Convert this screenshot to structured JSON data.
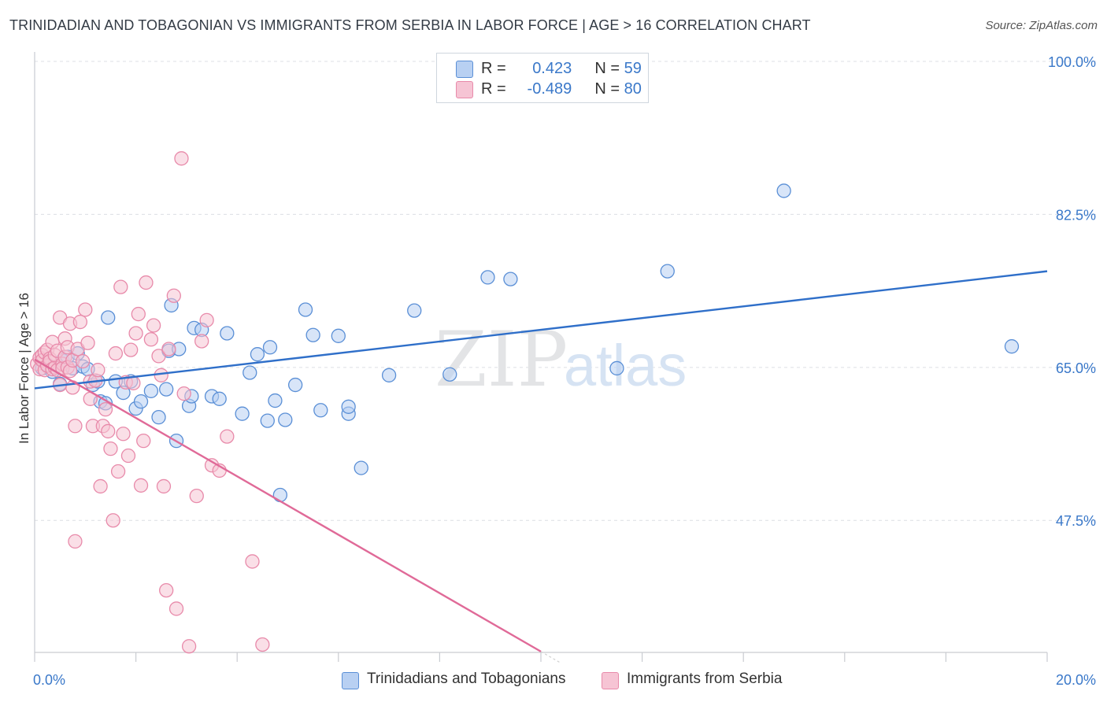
{
  "header": {
    "title": "TRINIDADIAN AND TOBAGONIAN VS IMMIGRANTS FROM SERBIA IN LABOR FORCE | AGE > 16 CORRELATION CHART",
    "source": "Source: ZipAtlas.com"
  },
  "legend": {
    "rows": [
      {
        "r_label": "R =",
        "r_value": "0.423",
        "n_label": "N =",
        "n_value": "59"
      },
      {
        "r_label": "R =",
        "r_value": "-0.489",
        "n_label": "N =",
        "n_value": "80"
      }
    ]
  },
  "watermark": {
    "zip": "ZIP",
    "atlas": "atlas"
  },
  "colors": {
    "blue_fill": "#b8d0f2",
    "blue_stroke": "#5a8fd6",
    "blue_line": "#2f6fc9",
    "pink_fill": "#f6c4d4",
    "pink_stroke": "#e88aaa",
    "pink_line": "#e06a98",
    "tick_label": "#3a78c9",
    "grid": "#dcdfe4"
  },
  "chart_data": {
    "type": "scatter",
    "title": "TRINIDADIAN AND TOBAGONIAN VS IMMIGRANTS FROM SERBIA IN LABOR FORCE | AGE > 16 CORRELATION CHART",
    "xlabel": "",
    "ylabel": "In Labor Force | Age > 16",
    "xlim": [
      0,
      20
    ],
    "ylim": [
      32.4,
      100
    ],
    "x_tick_labels": [
      "0.0%",
      "20.0%"
    ],
    "y_ticks": [
      47.5,
      65.0,
      82.5,
      100.0
    ],
    "y_tick_labels": [
      "47.5%",
      "65.0%",
      "82.5%",
      "100.0%"
    ],
    "grid": true,
    "legend_position": "top-center",
    "series": [
      {
        "name": "Trinidadians and Tobagonians",
        "color": "#5a8fd6",
        "trend": {
          "x": [
            0,
            20
          ],
          "y": [
            62.6,
            76.0
          ]
        },
        "points": [
          [
            0.15,
            64.9
          ],
          [
            0.25,
            65.3
          ],
          [
            0.35,
            64.5
          ],
          [
            0.5,
            63.1
          ],
          [
            0.55,
            65.8
          ],
          [
            0.65,
            66.2
          ],
          [
            0.75,
            64.9
          ],
          [
            0.85,
            66.6
          ],
          [
            0.95,
            65.1
          ],
          [
            1.05,
            64.8
          ],
          [
            1.15,
            63.0
          ],
          [
            1.25,
            63.4
          ],
          [
            1.3,
            61.1
          ],
          [
            1.4,
            60.9
          ],
          [
            1.45,
            70.7
          ],
          [
            1.6,
            63.4
          ],
          [
            1.75,
            62.1
          ],
          [
            1.9,
            63.4
          ],
          [
            2.0,
            60.3
          ],
          [
            2.1,
            61.1
          ],
          [
            2.3,
            62.3
          ],
          [
            2.45,
            59.3
          ],
          [
            2.6,
            62.5
          ],
          [
            2.65,
            66.9
          ],
          [
            2.7,
            72.1
          ],
          [
            2.8,
            56.6
          ],
          [
            2.85,
            67.1
          ],
          [
            3.05,
            60.6
          ],
          [
            3.1,
            61.7
          ],
          [
            3.15,
            69.5
          ],
          [
            3.3,
            69.3
          ],
          [
            3.5,
            61.7
          ],
          [
            3.65,
            61.4
          ],
          [
            3.8,
            68.9
          ],
          [
            4.1,
            59.7
          ],
          [
            4.25,
            64.4
          ],
          [
            4.4,
            66.5
          ],
          [
            4.6,
            58.9
          ],
          [
            4.65,
            67.3
          ],
          [
            4.75,
            61.2
          ],
          [
            4.85,
            50.4
          ],
          [
            4.95,
            59.0
          ],
          [
            5.15,
            63.0
          ],
          [
            5.35,
            71.6
          ],
          [
            5.5,
            68.7
          ],
          [
            5.65,
            60.1
          ],
          [
            6.0,
            68.6
          ],
          [
            6.2,
            59.7
          ],
          [
            6.2,
            60.5
          ],
          [
            6.45,
            53.5
          ],
          [
            7.0,
            64.1
          ],
          [
            7.5,
            71.5
          ],
          [
            8.2,
            64.2
          ],
          [
            8.95,
            75.3
          ],
          [
            9.4,
            75.1
          ],
          [
            11.5,
            64.9
          ],
          [
            12.5,
            76.0
          ],
          [
            14.8,
            85.2
          ],
          [
            19.3,
            67.4
          ]
        ]
      },
      {
        "name": "Immigrants from Serbia",
        "color": "#e88aaa",
        "trend": {
          "x": [
            0,
            10.0
          ],
          "y": [
            65.9,
            32.5
          ]
        },
        "points": [
          [
            0.05,
            65.4
          ],
          [
            0.1,
            66.1
          ],
          [
            0.1,
            64.8
          ],
          [
            0.15,
            66.4
          ],
          [
            0.15,
            65.8
          ],
          [
            0.2,
            66.7
          ],
          [
            0.2,
            64.7
          ],
          [
            0.25,
            65.2
          ],
          [
            0.25,
            67.0
          ],
          [
            0.3,
            66.0
          ],
          [
            0.3,
            65.7
          ],
          [
            0.35,
            64.8
          ],
          [
            0.35,
            67.9
          ],
          [
            0.4,
            65.0
          ],
          [
            0.4,
            66.4
          ],
          [
            0.45,
            66.9
          ],
          [
            0.45,
            64.7
          ],
          [
            0.5,
            63.0
          ],
          [
            0.5,
            70.7
          ],
          [
            0.55,
            65.4
          ],
          [
            0.55,
            64.9
          ],
          [
            0.6,
            66.2
          ],
          [
            0.6,
            68.3
          ],
          [
            0.65,
            65.0
          ],
          [
            0.65,
            67.3
          ],
          [
            0.7,
            64.6
          ],
          [
            0.7,
            70.0
          ],
          [
            0.75,
            65.8
          ],
          [
            0.75,
            62.7
          ],
          [
            0.8,
            58.3
          ],
          [
            0.8,
            45.1
          ],
          [
            0.85,
            67.1
          ],
          [
            0.9,
            70.2
          ],
          [
            0.95,
            65.7
          ],
          [
            1.0,
            71.6
          ],
          [
            1.05,
            67.8
          ],
          [
            1.1,
            63.4
          ],
          [
            1.1,
            61.4
          ],
          [
            1.15,
            58.3
          ],
          [
            1.2,
            63.5
          ],
          [
            1.25,
            64.7
          ],
          [
            1.3,
            51.4
          ],
          [
            1.35,
            58.3
          ],
          [
            1.4,
            60.2
          ],
          [
            1.45,
            57.7
          ],
          [
            1.5,
            55.7
          ],
          [
            1.55,
            47.5
          ],
          [
            1.6,
            66.6
          ],
          [
            1.65,
            53.1
          ],
          [
            1.7,
            74.2
          ],
          [
            1.75,
            57.4
          ],
          [
            1.8,
            63.3
          ],
          [
            1.85,
            54.9
          ],
          [
            1.9,
            67.0
          ],
          [
            1.95,
            63.2
          ],
          [
            2.0,
            68.9
          ],
          [
            2.05,
            71.1
          ],
          [
            2.1,
            51.5
          ],
          [
            2.15,
            56.6
          ],
          [
            2.2,
            74.7
          ],
          [
            2.3,
            68.2
          ],
          [
            2.35,
            69.8
          ],
          [
            2.45,
            66.3
          ],
          [
            2.5,
            64.1
          ],
          [
            2.55,
            51.4
          ],
          [
            2.6,
            39.5
          ],
          [
            2.65,
            67.1
          ],
          [
            2.75,
            73.2
          ],
          [
            2.8,
            37.4
          ],
          [
            2.9,
            88.9
          ],
          [
            2.95,
            62.0
          ],
          [
            3.05,
            33.1
          ],
          [
            3.2,
            50.3
          ],
          [
            3.3,
            68.0
          ],
          [
            3.4,
            70.4
          ],
          [
            3.5,
            53.8
          ],
          [
            3.65,
            53.2
          ],
          [
            3.8,
            57.1
          ],
          [
            4.3,
            42.8
          ],
          [
            4.5,
            33.3
          ]
        ]
      }
    ]
  },
  "bottom_legend": [
    {
      "label": "Trinidadians and Tobagonians"
    },
    {
      "label": "Immigrants from Serbia"
    }
  ]
}
